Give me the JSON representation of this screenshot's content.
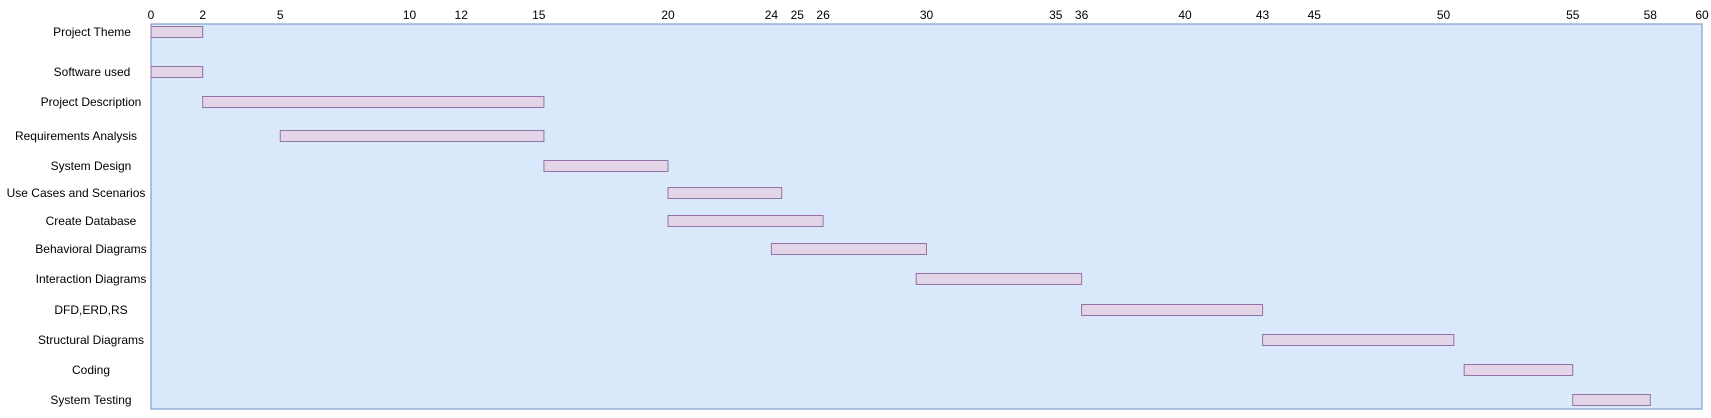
{
  "chart_data": {
    "type": "gantt",
    "title": "",
    "xlabel": "",
    "ylabel": "",
    "xlim": [
      0,
      60
    ],
    "x_ticks": [
      0,
      2,
      5,
      10,
      12,
      15,
      20,
      24,
      25,
      26,
      30,
      35,
      36,
      40,
      43,
      45,
      50,
      55,
      58,
      60
    ],
    "grid": false,
    "legend": "none",
    "colors": {
      "plot_background": "#dae8fc",
      "plot_border": "#6c8ebf",
      "bar_fill": "#e1d5e7",
      "bar_border": "#9673a6"
    },
    "tasks": [
      {
        "name": "Project Theme",
        "start": 0,
        "end": 2
      },
      {
        "name": "Software used",
        "start": 0,
        "end": 2
      },
      {
        "name": "Project Description",
        "start": 2,
        "end": 15.2
      },
      {
        "name": "Requirements Analysis",
        "start": 5,
        "end": 15.2
      },
      {
        "name": "System Design",
        "start": 15.2,
        "end": 20
      },
      {
        "name": "Use Cases and Scenarios",
        "start": 20,
        "end": 24.4
      },
      {
        "name": "Create Database",
        "start": 20,
        "end": 26
      },
      {
        "name": "Behavioral Diagrams",
        "start": 24,
        "end": 30
      },
      {
        "name": "Interaction Diagrams",
        "start": 29.6,
        "end": 36
      },
      {
        "name": "DFD,ERD,RS",
        "start": 36,
        "end": 43
      },
      {
        "name": "Structural Diagrams",
        "start": 43,
        "end": 50.4
      },
      {
        "name": "Coding",
        "start": 50.8,
        "end": 55
      },
      {
        "name": "System Testing",
        "start": 55,
        "end": 58
      }
    ]
  }
}
